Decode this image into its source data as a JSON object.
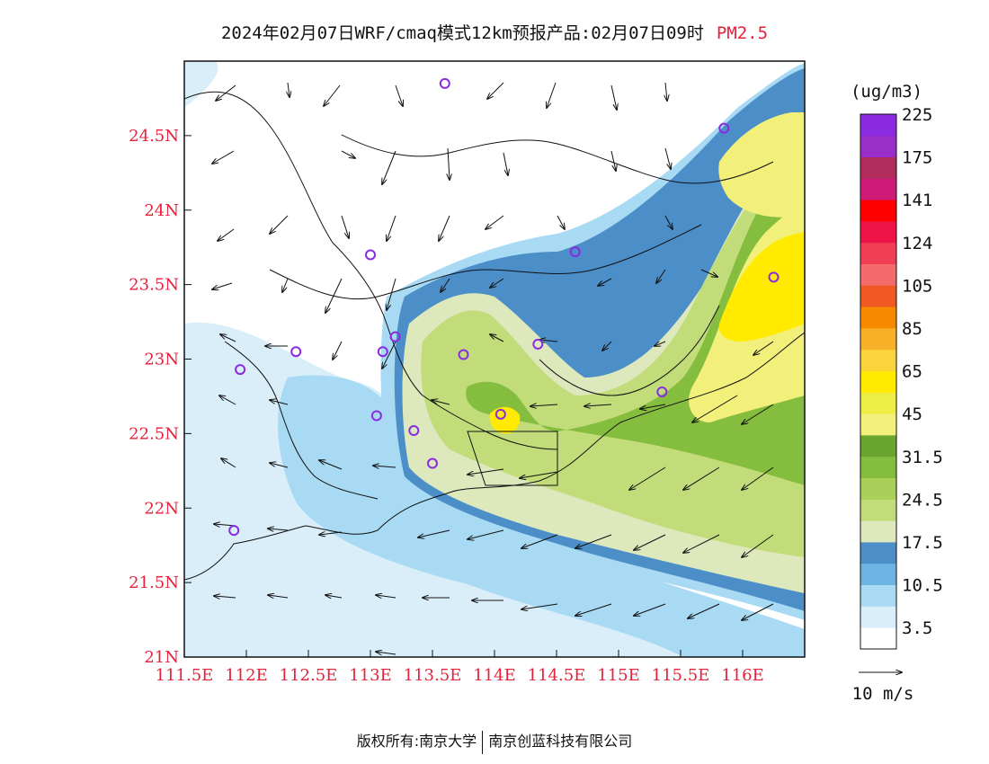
{
  "header": {
    "title": "2024年02月07日WRF/cmaq模式12km预报产品:02月07日09时",
    "species": "PM2.5"
  },
  "map": {
    "lat_labels": [
      "24.5N",
      "24N",
      "23.5N",
      "23N",
      "22.5N",
      "22N",
      "21.5N",
      "21N"
    ],
    "lon_labels": [
      "111.5E",
      "112E",
      "112.5E",
      "113E",
      "113.5E",
      "114E",
      "114.5E",
      "115E",
      "115.5E",
      "116E"
    ],
    "lat_range": [
      21.0,
      25.0
    ],
    "lon_range": [
      111.5,
      116.5
    ],
    "station_marker_color": "#8a2be2",
    "stations": [
      {
        "lon": 113.6,
        "lat": 24.85
      },
      {
        "lon": 115.85,
        "lat": 24.55
      },
      {
        "lon": 113.0,
        "lat": 23.7
      },
      {
        "lon": 114.65,
        "lat": 23.72
      },
      {
        "lon": 116.25,
        "lat": 23.55
      },
      {
        "lon": 113.2,
        "lat": 23.15
      },
      {
        "lon": 112.4,
        "lat": 23.05
      },
      {
        "lon": 113.1,
        "lat": 23.05
      },
      {
        "lon": 113.75,
        "lat": 23.03
      },
      {
        "lon": 114.35,
        "lat": 23.1
      },
      {
        "lon": 111.95,
        "lat": 22.93
      },
      {
        "lon": 115.35,
        "lat": 22.78
      },
      {
        "lon": 113.05,
        "lat": 22.62
      },
      {
        "lon": 114.05,
        "lat": 22.63
      },
      {
        "lon": 113.35,
        "lat": 22.52
      },
      {
        "lon": 113.5,
        "lat": 22.3
      },
      {
        "lon": 111.9,
        "lat": 21.85
      }
    ]
  },
  "legend": {
    "unit": "(ug/m3)",
    "colors": [
      "#ffffff",
      "#daeefa",
      "#a8daf4",
      "#6eb4e2",
      "#4b8ec8",
      "#dde8bc",
      "#c2dc7a",
      "#a9d15a",
      "#85bd3e",
      "#6aa530",
      "#f2f07a",
      "#eded44",
      "#ffea00",
      "#fbd33a",
      "#f7b027",
      "#f78b00",
      "#f05a22",
      "#f56a6a",
      "#f23e55",
      "#ef1448",
      "#ff0000",
      "#d01a7a",
      "#b02c5c",
      "#9a2ec8",
      "#8a2be2"
    ],
    "labels": [
      "3.5",
      "10.5",
      "17.5",
      "24.5",
      "31.5",
      "45",
      "65",
      "85",
      "105",
      "124",
      "141",
      "175",
      "225"
    ],
    "wind_ref_label": "10 m/s"
  },
  "footer": {
    "copyright": "版权所有:南京大学",
    "company": "南京创蓝科技有限公司"
  }
}
